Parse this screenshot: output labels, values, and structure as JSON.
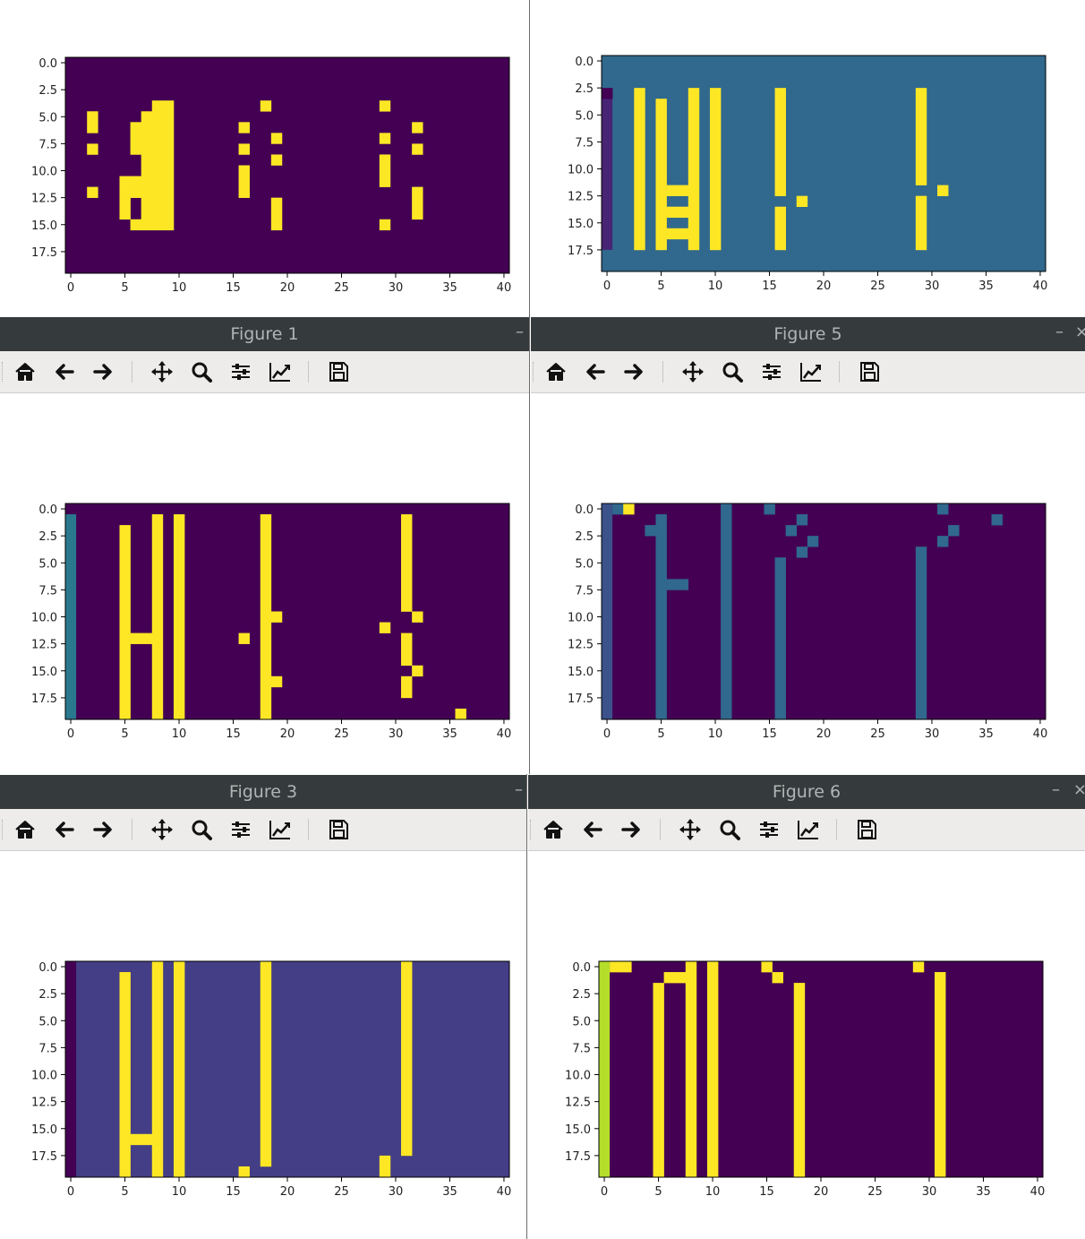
{
  "windows": [
    {
      "id": "w1",
      "title": "Figure 1",
      "bg": "#440154",
      "cells": [
        [
          2,
          5,
          1,
          2
        ],
        [
          2,
          8,
          1,
          1
        ],
        [
          2,
          12,
          1,
          1
        ],
        [
          5,
          11,
          1,
          2
        ],
        [
          5,
          13,
          1,
          2
        ],
        [
          6,
          6,
          1,
          3
        ],
        [
          6,
          11,
          1,
          2
        ],
        [
          6,
          15,
          1,
          1
        ],
        [
          7,
          5,
          1,
          11
        ],
        [
          8,
          4,
          1,
          12
        ],
        [
          9,
          4,
          1,
          12
        ],
        [
          16,
          6,
          1,
          1
        ],
        [
          16,
          8,
          1,
          1
        ],
        [
          16,
          10,
          1,
          3
        ],
        [
          18,
          4,
          1,
          1
        ],
        [
          19,
          7,
          1,
          1
        ],
        [
          19,
          9,
          1,
          1
        ],
        [
          19,
          13,
          1,
          3
        ],
        [
          29,
          4,
          1,
          1
        ],
        [
          29,
          7,
          1,
          1
        ],
        [
          29,
          9,
          1,
          3
        ],
        [
          29,
          15,
          1,
          1
        ],
        [
          32,
          6,
          1,
          1
        ],
        [
          32,
          8,
          1,
          1
        ],
        [
          32,
          12,
          1,
          3
        ]
      ],
      "extra": [],
      "edge_col": null
    },
    {
      "id": "w5",
      "title": "Figure 5",
      "bg": "#31688e",
      "cells": [
        [
          3,
          3,
          1,
          15
        ],
        [
          5,
          4,
          1,
          14
        ],
        [
          6,
          12,
          1,
          1
        ],
        [
          6,
          14,
          1,
          1
        ],
        [
          6,
          16,
          1,
          1
        ],
        [
          7,
          12,
          1,
          1
        ],
        [
          7,
          14,
          1,
          1
        ],
        [
          7,
          16,
          1,
          1
        ],
        [
          8,
          3,
          1,
          15
        ],
        [
          10,
          3,
          1,
          15
        ],
        [
          16,
          3,
          1,
          10
        ],
        [
          16,
          14,
          1,
          4
        ],
        [
          18,
          13,
          1,
          1
        ],
        [
          29,
          3,
          1,
          9
        ],
        [
          29,
          13,
          1,
          5
        ],
        [
          31,
          12,
          1,
          1
        ]
      ],
      "extra": [
        [
          0,
          3,
          1,
          1,
          "#440154"
        ]
      ],
      "edge_col": {
        "x": 0,
        "y0": 4,
        "y1": 17,
        "color": "#482475"
      }
    },
    {
      "id": "w3",
      "title": "Figure 3",
      "bg": "#440154",
      "cells": [
        [
          5,
          2,
          1,
          18
        ],
        [
          6,
          12,
          1,
          1
        ],
        [
          7,
          12,
          1,
          1
        ],
        [
          8,
          1,
          1,
          19
        ],
        [
          10,
          1,
          1,
          19
        ],
        [
          16,
          12,
          1,
          1
        ],
        [
          18,
          1,
          1,
          19
        ],
        [
          19,
          10,
          1,
          1
        ],
        [
          19,
          16,
          1,
          1
        ],
        [
          29,
          11,
          1,
          1
        ],
        [
          31,
          1,
          1,
          9
        ],
        [
          31,
          12,
          1,
          3
        ],
        [
          31,
          16,
          1,
          2
        ],
        [
          32,
          10,
          1,
          1
        ],
        [
          32,
          15,
          1,
          1
        ],
        [
          36,
          19,
          1,
          1
        ]
      ],
      "extra": [],
      "edge_col": {
        "x": 0,
        "y0": 1,
        "y1": 19,
        "color": "#2a788e"
      }
    },
    {
      "id": "w6",
      "title": "Figure 6",
      "bg": "#440154",
      "cells": [],
      "extra": [
        [
          1,
          0,
          1,
          1,
          "#31688e"
        ],
        [
          2,
          0,
          1,
          1,
          "#fde725"
        ],
        [
          4,
          2,
          1,
          1,
          "#31688e"
        ],
        [
          5,
          1,
          1,
          19,
          "#31688e"
        ],
        [
          6,
          7,
          1,
          1,
          "#31688e"
        ],
        [
          7,
          7,
          1,
          1,
          "#31688e"
        ],
        [
          11,
          0,
          1,
          20,
          "#31688e"
        ],
        [
          15,
          0,
          1,
          1,
          "#31688e"
        ],
        [
          16,
          5,
          1,
          15,
          "#31688e"
        ],
        [
          17,
          2,
          1,
          1,
          "#31688e"
        ],
        [
          18,
          1,
          1,
          1,
          "#31688e"
        ],
        [
          18,
          4,
          1,
          1,
          "#31688e"
        ],
        [
          19,
          3,
          1,
          1,
          "#31688e"
        ],
        [
          29,
          4,
          1,
          16,
          "#31688e"
        ],
        [
          31,
          0,
          1,
          1,
          "#31688e"
        ],
        [
          31,
          3,
          1,
          1,
          "#31688e"
        ],
        [
          32,
          2,
          1,
          1,
          "#31688e"
        ],
        [
          36,
          1,
          1,
          1,
          "#31688e"
        ]
      ],
      "edge_col": {
        "x": 0,
        "y0": 0,
        "y1": 19,
        "color": "#3b528b"
      }
    },
    {
      "id": "w7",
      "title": "",
      "bg": "#433e85",
      "cells": [
        [
          5,
          1,
          1,
          19
        ],
        [
          6,
          16,
          1,
          1
        ],
        [
          7,
          16,
          1,
          1
        ],
        [
          8,
          0,
          1,
          20
        ],
        [
          10,
          0,
          1,
          20
        ],
        [
          16,
          19,
          1,
          1
        ],
        [
          18,
          0,
          1,
          19
        ],
        [
          29,
          18,
          1,
          2
        ],
        [
          31,
          0,
          1,
          18
        ]
      ],
      "extra": [],
      "edge_col": {
        "x": 0,
        "y0": 0,
        "y1": 19,
        "color": "#440154"
      }
    },
    {
      "id": "w8",
      "title": "",
      "bg": "#440154",
      "cells": [
        [
          1,
          0,
          1,
          1
        ],
        [
          2,
          0,
          1,
          1
        ],
        [
          5,
          2,
          1,
          18
        ],
        [
          6,
          1,
          1,
          1
        ],
        [
          7,
          1,
          1,
          1
        ],
        [
          8,
          0,
          1,
          20
        ],
        [
          10,
          0,
          1,
          20
        ],
        [
          15,
          0,
          1,
          1
        ],
        [
          16,
          1,
          1,
          1
        ],
        [
          18,
          2,
          1,
          18
        ],
        [
          29,
          0,
          1,
          1
        ],
        [
          31,
          1,
          1,
          19
        ]
      ],
      "extra": [],
      "edge_col": {
        "x": 0,
        "y0": 0,
        "y1": 19,
        "color": "#b5de2b"
      }
    }
  ],
  "axis": {
    "xticks": [
      "0",
      "5",
      "10",
      "15",
      "20",
      "25",
      "30",
      "35",
      "40"
    ],
    "yticks": [
      "0.0",
      "2.5",
      "5.0",
      "7.5",
      "10.0",
      "12.5",
      "15.0",
      "17.5"
    ]
  },
  "toolbar_icons": [
    "home-icon",
    "back-icon",
    "forward-icon",
    "pan-icon",
    "zoom-icon",
    "configure-subplots-icon",
    "edit-axis-icon",
    "save-icon"
  ],
  "colors": {
    "yellow": "#fde725",
    "titlebar": "#353b3c",
    "toolbar": "#eeeceb"
  },
  "chart_data": [
    {
      "type": "heatmap",
      "title": "",
      "xlim": [
        -0.5,
        40.5
      ],
      "ylim": [
        19.5,
        -0.5
      ]
    },
    {
      "type": "heatmap",
      "title": "",
      "xlim": [
        -0.5,
        40.5
      ],
      "ylim": [
        19.5,
        -0.5
      ]
    },
    {
      "type": "heatmap",
      "title": "",
      "xlim": [
        -0.5,
        40.5
      ],
      "ylim": [
        19.5,
        -0.5
      ]
    },
    {
      "type": "heatmap",
      "title": "",
      "xlim": [
        -0.5,
        40.5
      ],
      "ylim": [
        19.5,
        -0.5
      ]
    },
    {
      "type": "heatmap",
      "title": "",
      "xlim": [
        -0.5,
        40.5
      ],
      "ylim": [
        19.5,
        -0.5
      ]
    },
    {
      "type": "heatmap",
      "title": "",
      "xlim": [
        -0.5,
        40.5
      ],
      "ylim": [
        19.5,
        -0.5
      ]
    }
  ]
}
